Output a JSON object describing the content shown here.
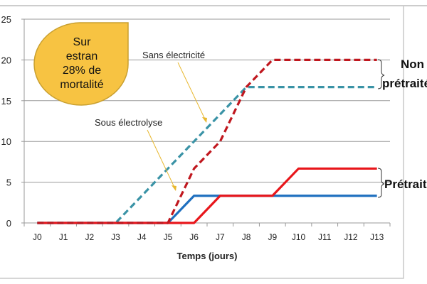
{
  "chart_data": {
    "type": "line",
    "title": "",
    "xlabel": "Temps (jours)",
    "ylabel": "",
    "ylim": [
      0,
      25
    ],
    "yticks": [
      0,
      5,
      10,
      15,
      20,
      25
    ],
    "grid": true,
    "categories": [
      "J0",
      "J1",
      "J2",
      "J3",
      "J4",
      "J5",
      "J6",
      "J7",
      "J8",
      "J9",
      "J10",
      "J11",
      "J12",
      "J13"
    ],
    "series": [
      {
        "group": "Non prétraité",
        "color": "#3a93a6",
        "dashed": true,
        "values": [
          0,
          0,
          0,
          0,
          3.33,
          6.67,
          10,
          13.33,
          16.67,
          16.67,
          16.67,
          16.67,
          16.67,
          16.67
        ]
      },
      {
        "group": "Non prétraité",
        "color": "#c0171e",
        "dashed": true,
        "values": [
          0,
          0,
          0,
          0,
          0,
          0,
          6.67,
          10,
          16.67,
          20,
          20,
          20,
          20,
          20
        ]
      },
      {
        "group": "Prétraité",
        "color": "#1e6fbf",
        "dashed": false,
        "values": [
          0,
          0,
          0,
          0,
          0,
          0,
          3.33,
          3.33,
          3.33,
          3.33,
          3.33,
          3.33,
          3.33,
          3.33
        ]
      },
      {
        "group": "Prétraité",
        "color": "#e8161b",
        "dashed": false,
        "values": [
          0,
          0,
          0,
          0,
          0,
          0,
          0,
          3.33,
          3.33,
          3.33,
          6.67,
          6.67,
          6.67,
          6.67
        ]
      }
    ],
    "annotations": {
      "sans_electricite": "Sans électricité",
      "sous_electrolyse": "Sous électrolyse",
      "group_non_pretraite": "Non prétraité",
      "group_pretraite": "Prétraité",
      "bubble_lines": [
        "Sur",
        "estran",
        "28% de",
        "mortalité"
      ],
      "bubble_color": "#f7c342",
      "arrow_color": "#e8b830"
    }
  }
}
